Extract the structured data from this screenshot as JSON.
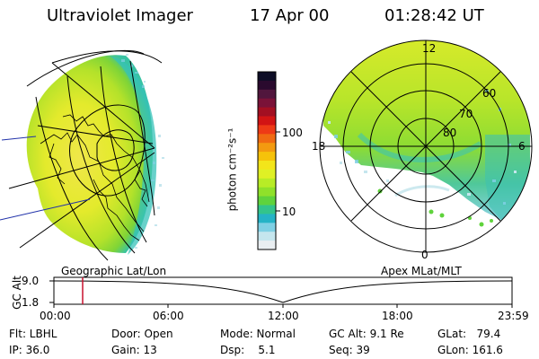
{
  "header": {
    "title": "Ultraviolet Imager",
    "date": "17 Apr 00",
    "time": "01:28:42 UT"
  },
  "polar": {
    "labels": [
      "12",
      "60",
      "70",
      "80",
      "18",
      "6",
      "0"
    ]
  },
  "colorbar": {
    "unit_label": "photon cm⁻²s⁻¹",
    "tick_labels": [
      "100",
      "10"
    ],
    "colors": [
      "#0d0d26",
      "#2a0a2e",
      "#51163d",
      "#7a1238",
      "#a30f22",
      "#d21414",
      "#ee3a16",
      "#f06a12",
      "#f39a10",
      "#f6c20a",
      "#f3e51a",
      "#dff025",
      "#b8ec26",
      "#8fe12a",
      "#5fd33c",
      "#33c48b",
      "#25b3c6",
      "#7fd0e4",
      "#c5e6ee",
      "#e9eef1"
    ]
  },
  "timeline": {
    "left_label": "Geographic Lat/Lon",
    "right_label": "Apex MLat/MLT",
    "axis_label": "GC Alt",
    "y_labels": [
      "9.0",
      "1.8"
    ],
    "x_labels": [
      "00:00",
      "06:00",
      "12:00",
      "18:00",
      "23:59"
    ]
  },
  "status": {
    "flt": "Flt: LBHL",
    "ip": "IP: 36.0",
    "door": "Door: Open",
    "gain": "Gain: 13",
    "mode": "Mode: Normal",
    "dsp": "Dsp:    5.1",
    "gcalt": "GC Alt: 9.1 Re",
    "seq": "Seq: 39",
    "glat": "GLat:   79.4",
    "glon": "GLon: 161.6"
  },
  "colors": {
    "marker": "#c8102e",
    "ink": "#000000"
  }
}
